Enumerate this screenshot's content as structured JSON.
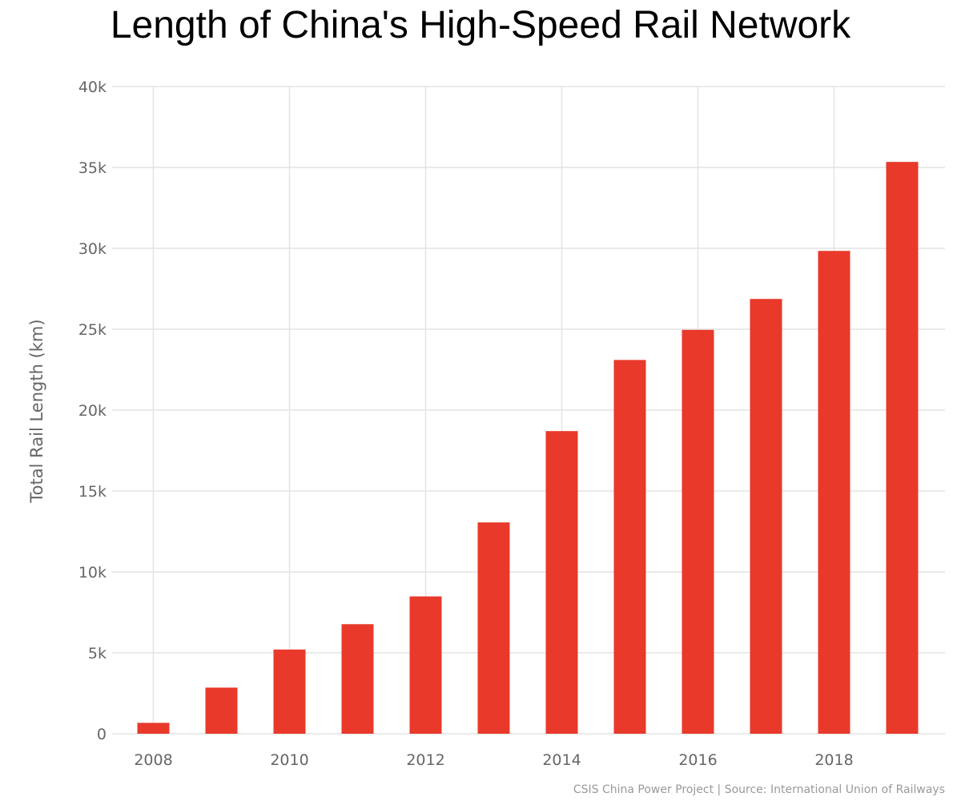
{
  "chart_data": {
    "type": "bar",
    "title": "Length of China's High-Speed Rail Network",
    "xlabel": "",
    "ylabel": "Total Rail Length (km)",
    "categories": [
      "2008",
      "2009",
      "2010",
      "2011",
      "2012",
      "2013",
      "2014",
      "2015",
      "2016",
      "2017",
      "2018",
      "2019"
    ],
    "values": [
      672,
      2850,
      5203,
      6770,
      8486,
      13060,
      18704,
      23100,
      24960,
      26870,
      29840,
      35340
    ],
    "x_ticks": [
      "2008",
      "2010",
      "2012",
      "2014",
      "2016",
      "2018"
    ],
    "y_ticks": [
      {
        "value": 0,
        "label": "0"
      },
      {
        "value": 5000,
        "label": "5k"
      },
      {
        "value": 10000,
        "label": "10k"
      },
      {
        "value": 15000,
        "label": "15k"
      },
      {
        "value": 20000,
        "label": "20k"
      },
      {
        "value": 25000,
        "label": "25k"
      },
      {
        "value": 30000,
        "label": "30k"
      },
      {
        "value": 35000,
        "label": "35k"
      },
      {
        "value": 40000,
        "label": "40k"
      }
    ],
    "ylim": [
      0,
      40000
    ],
    "grid": true,
    "bar_color": "#e8392a",
    "grid_color": "#e3e3e3",
    "credit": "CSIS China Power Project | Source: International Union of Railways"
  }
}
